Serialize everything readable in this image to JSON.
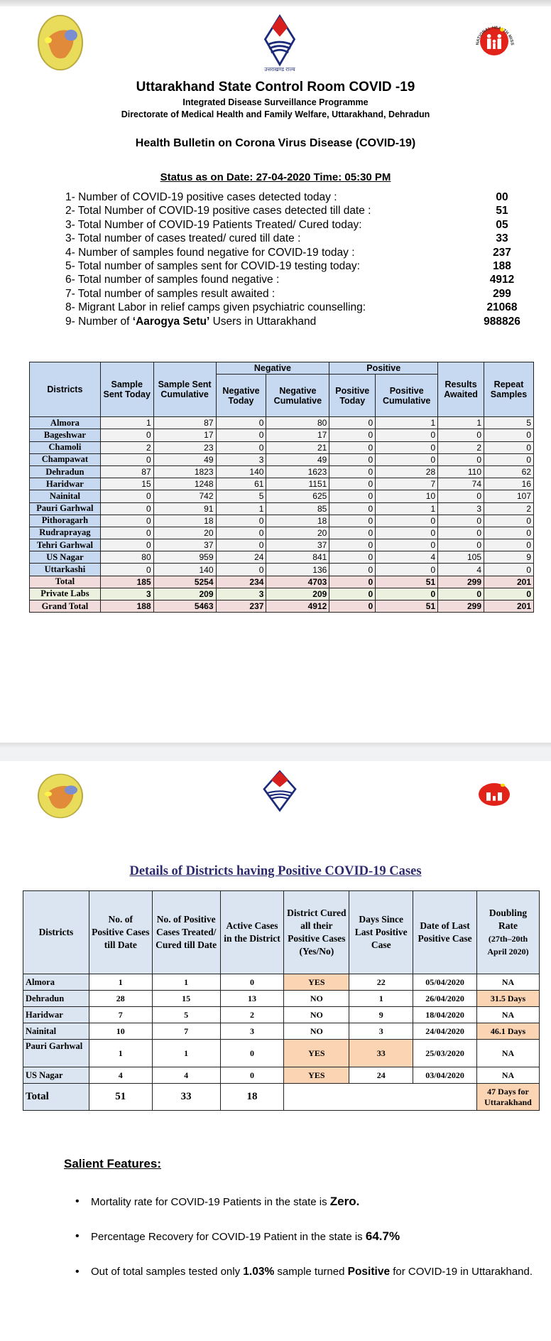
{
  "header": {
    "title": "Uttarakhand State Control Room COVID -19",
    "subtitle1": "Integrated Disease Surveillance Programme",
    "subtitle2": "Directorate of Medical Health and Family Welfare, Uttarakhand, Dehradun",
    "bulletin": "Health Bulletin on Corona Virus Disease (COVID-19)",
    "status": "Status as on Date: 27-04-2020 Time: 05:30 PM",
    "logos": {
      "left": "idsp-logo",
      "center": "uttarakhand-govt-logo",
      "center_text": "उत्तराखण्ड राज्य",
      "right": "national-health-mission-logo",
      "right_text": "NATIONAL HEALTH MISSION"
    }
  },
  "summary": [
    {
      "label": "1- Number of COVID-19 positive cases detected today :",
      "value": "00"
    },
    {
      "label": "2- Total Number of COVID-19 positive cases detected till date :",
      "value": "51"
    },
    {
      "label": "3- Total Number of COVID-19 Patients Treated/ Cured today:",
      "value": "05"
    },
    {
      "label": "3- Total number of cases treated/ cured till date :",
      "value": "33"
    },
    {
      "label": "4- Number of samples found negative for COVID-19 today :",
      "value": "237"
    },
    {
      "label": "5- Total number of samples sent for COVID-19 testing today:",
      "value": "188"
    },
    {
      "label": "6- Total number of samples found negative :",
      "value": "4912"
    },
    {
      "label": "7- Total number of samples result awaited :",
      "value": "299"
    },
    {
      "label": "8- Migrant Labor in relief camps given psychiatric counselling:",
      "value": "21068"
    },
    {
      "label_pre": "9- Number of ",
      "label_bold": "‘Aarogya Setu’",
      "label_post": " Users in Uttarakhand",
      "value": "988826"
    }
  ],
  "samples_table": {
    "group_headers": {
      "negative": "Negative",
      "positive": "Positive"
    },
    "headers": [
      "Districts",
      "Sample Sent Today",
      "Sample Sent Cumulative",
      "Negative Today",
      "Negative Cumulative",
      "Positive Today",
      "Positive Cumulative",
      "Results Awaited",
      "Repeat Samples"
    ],
    "rows": [
      [
        "Almora",
        "1",
        "87",
        "0",
        "80",
        "0",
        "1",
        "1",
        "5"
      ],
      [
        "Bageshwar",
        "0",
        "17",
        "0",
        "17",
        "0",
        "0",
        "0",
        "0"
      ],
      [
        "Chamoli",
        "2",
        "23",
        "0",
        "21",
        "0",
        "0",
        "2",
        "0"
      ],
      [
        "Champawat",
        "0",
        "49",
        "3",
        "49",
        "0",
        "0",
        "0",
        "0"
      ],
      [
        "Dehradun",
        "87",
        "1823",
        "140",
        "1623",
        "0",
        "28",
        "110",
        "62"
      ],
      [
        "Haridwar",
        "15",
        "1248",
        "61",
        "1151",
        "0",
        "7",
        "74",
        "16"
      ],
      [
        "Nainital",
        "0",
        "742",
        "5",
        "625",
        "0",
        "10",
        "0",
        "107"
      ],
      [
        "Pauri Garhwal",
        "0",
        "91",
        "1",
        "85",
        "0",
        "1",
        "3",
        "2"
      ],
      [
        "Pithoragarh",
        "0",
        "18",
        "0",
        "18",
        "0",
        "0",
        "0",
        "0"
      ],
      [
        "Rudraprayag",
        "0",
        "20",
        "0",
        "20",
        "0",
        "0",
        "0",
        "0"
      ],
      [
        "Tehri Garhwal",
        "0",
        "37",
        "0",
        "37",
        "0",
        "0",
        "0",
        "0"
      ],
      [
        "US Nagar",
        "80",
        "959",
        "24",
        "841",
        "0",
        "4",
        "105",
        "9"
      ],
      [
        "Uttarkashi",
        "0",
        "140",
        "0",
        "136",
        "0",
        "0",
        "4",
        "0"
      ]
    ],
    "total": [
      "Total",
      "185",
      "5254",
      "234",
      "4703",
      "0",
      "51",
      "299",
      "201"
    ],
    "private_labs": [
      "Private Labs",
      "3",
      "209",
      "3",
      "209",
      "0",
      "0",
      "0",
      "0"
    ],
    "grand_total": [
      "Grand Total",
      "188",
      "5463",
      "237",
      "4912",
      "0",
      "51",
      "299",
      "201"
    ]
  },
  "districts_section": {
    "title": "Details of Districts having Positive COVID-19 Cases",
    "headers": [
      "Districts",
      "No. of Positive Cases till Date",
      "No. of Positive Cases Treated/ Cured till Date",
      "Active Cases in the District",
      "District Cured all their Positive Cases (Yes/No)",
      "Days Since Last Positive Case",
      "Date of Last Positive Case",
      "Doubling Rate",
      "(27th–20th April 2020)"
    ],
    "rows": [
      [
        "Almora",
        "1",
        "1",
        "0",
        "YES",
        "22",
        "05/04/2020",
        "NA"
      ],
      [
        "Dehradun",
        "28",
        "15",
        "13",
        "NO",
        "1",
        "26/04/2020",
        "31.5 Days"
      ],
      [
        "Haridwar",
        "7",
        "5",
        "2",
        "NO",
        "9",
        "18/04/2020",
        "NA"
      ],
      [
        "Nainital",
        "10",
        "7",
        "3",
        "NO",
        "3",
        "24/04/2020",
        "46.1 Days"
      ],
      [
        "Pauri Garhwal",
        "1",
        "1",
        "0",
        "YES",
        "33",
        "25/03/2020",
        "NA"
      ],
      [
        "US Nagar",
        "4",
        "4",
        "0",
        "YES",
        "24",
        "03/04/2020",
        "NA"
      ]
    ],
    "total": [
      "Total",
      "51",
      "33",
      "18",
      "47 Days for Uttarakhand"
    ],
    "highlight_color": "#fbd4b4"
  },
  "salient": {
    "title": "Salient Features:",
    "items": [
      {
        "pre": "Mortality rate for COVID-19   Patients in the state is ",
        "bold": "Zero.",
        "post": ""
      },
      {
        "pre": "Percentage Recovery for COVID-19 Patient in the state is ",
        "bold": "64.7%",
        "post": ""
      },
      {
        "pre": "Out of total samples tested only ",
        "bold": "1.03%",
        "mid": " sample turned ",
        "bold2": "Positive",
        "post": " for COVID-19 in Uttarakhand."
      }
    ]
  },
  "colors": {
    "table_header": "#c6d9f1",
    "total_row": "#f2dcdb",
    "private_labs_row": "#ebf1de",
    "title_color": "#2e2a6e"
  }
}
